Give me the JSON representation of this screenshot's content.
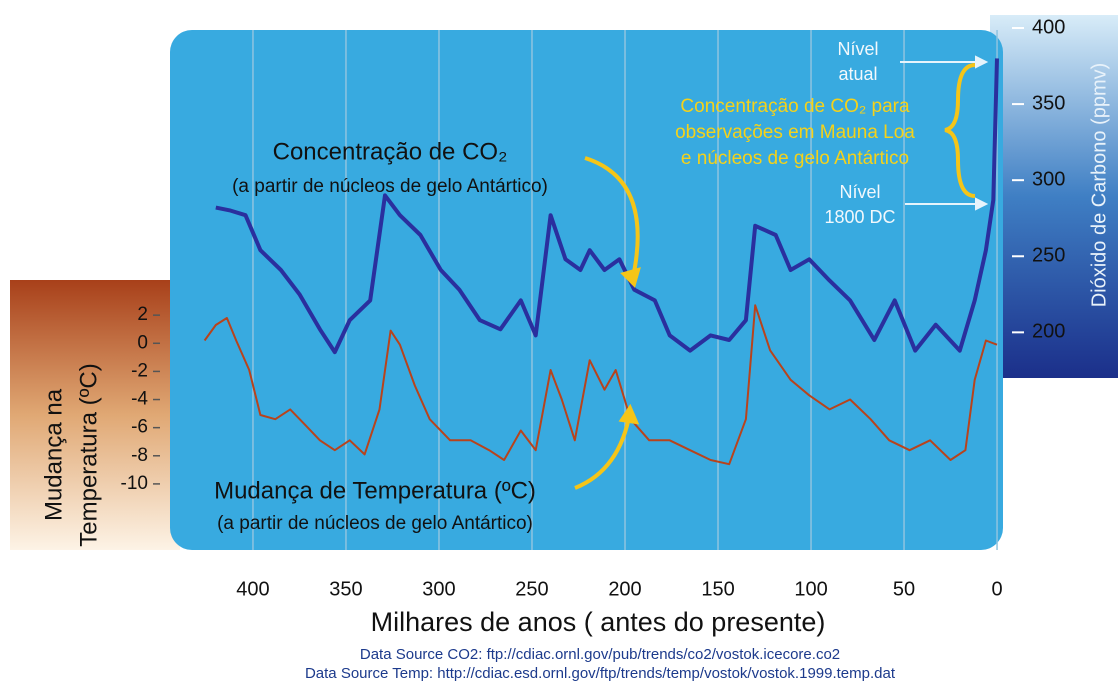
{
  "chart_data": {
    "type": "line",
    "xlabel": "Milhares de anos ( antes do presente)",
    "ylabel": [
      "Mudança na",
      "Temperatura (ºC)"
    ],
    "y2label": "Dióxido de Carbono (ppmv)",
    "xlim": [
      444.6,
      -3.2
    ],
    "xticks": [
      400,
      350,
      300,
      250,
      200,
      150,
      100,
      50,
      0
    ],
    "ylim": [
      -14.7,
      4.5
    ],
    "yticks": [
      2,
      0,
      -2,
      -4,
      -6,
      -8,
      -10
    ],
    "y2lim": [
      170,
      400
    ],
    "y2ticks": [
      400,
      350,
      300,
      250,
      200
    ],
    "grid": true,
    "annotations": {
      "co2_label": [
        "Concentração de CO₂",
        "(a partir de núcleos de gelo Antártico)"
      ],
      "temp_label": [
        "Mudança de Temperatura (ºC)",
        "(a partir de núcleos de gelo Antártico)"
      ],
      "mauna_loa": [
        "Concentração de CO₂ para",
        "observações em Mauna Loa",
        "e núcleos de gelo Antártico"
      ],
      "current_level": [
        "Nível",
        "atual"
      ],
      "level_1800": [
        "Nível",
        "1800 DC"
      ]
    },
    "sources": [
      "Data Source CO2: ftp://cdiac.ornl.gov/pub/trends/co2/vostok.icecore.co2",
      "Data Source Temp: http://cdiac.esd.ornl.gov/ftp/trends/temp/vostok/vostok.1999.temp.dat"
    ],
    "series": [
      {
        "name": "CO2",
        "color": "#2a2f9e",
        "axis": "y2",
        "x": [
          420,
          412,
          404,
          396,
          385,
          375,
          364,
          356,
          348,
          337,
          329,
          321,
          310,
          299,
          289,
          278,
          267,
          256,
          248,
          240,
          232,
          224,
          219,
          211,
          203,
          195,
          184,
          176,
          165,
          154,
          144,
          135,
          130,
          119,
          111,
          101,
          90,
          79,
          66,
          55,
          44,
          33,
          20,
          12,
          6,
          2,
          0
        ],
        "values": [
          282,
          280,
          277,
          254,
          241,
          225,
          202,
          187,
          208,
          221,
          290,
          277,
          264,
          241,
          228,
          208,
          202,
          221,
          198,
          277,
          248,
          241,
          254,
          241,
          248,
          228,
          221,
          198,
          188,
          198,
          195,
          208,
          270,
          264,
          241,
          248,
          234,
          221,
          195,
          221,
          188,
          205,
          188,
          221,
          254,
          287,
          380
        ]
      },
      {
        "name": "Temperatura",
        "color": "#b8431c",
        "x": [
          426,
          420,
          414,
          409,
          402,
          396,
          388,
          380,
          372,
          364,
          356,
          348,
          340,
          332,
          326,
          321,
          313,
          305,
          294,
          283,
          273,
          265,
          256,
          248,
          240,
          234,
          227,
          219,
          211,
          205,
          197,
          187,
          176,
          165,
          154,
          144,
          135,
          130,
          122,
          111,
          101,
          90,
          79,
          68,
          58,
          47,
          36,
          25,
          17,
          12,
          6,
          0
        ],
        "values": [
          0.2,
          1.3,
          1.8,
          0.2,
          -1.9,
          -5.1,
          -5.4,
          -4.7,
          -5.8,
          -6.9,
          -7.6,
          -6.9,
          -7.9,
          -4.7,
          0.9,
          -0.1,
          -3.0,
          -5.4,
          -6.9,
          -6.9,
          -7.6,
          -8.3,
          -6.2,
          -7.6,
          -1.9,
          -4.0,
          -6.9,
          -1.2,
          -3.3,
          -1.9,
          -5.4,
          -6.9,
          -6.9,
          -7.6,
          -8.3,
          -8.6,
          -5.4,
          2.7,
          -0.5,
          -2.6,
          -3.7,
          -4.7,
          -4.0,
          -5.4,
          -6.9,
          -7.6,
          -6.9,
          -8.3,
          -7.6,
          -2.6,
          0.2,
          -0.1
        ]
      }
    ]
  }
}
